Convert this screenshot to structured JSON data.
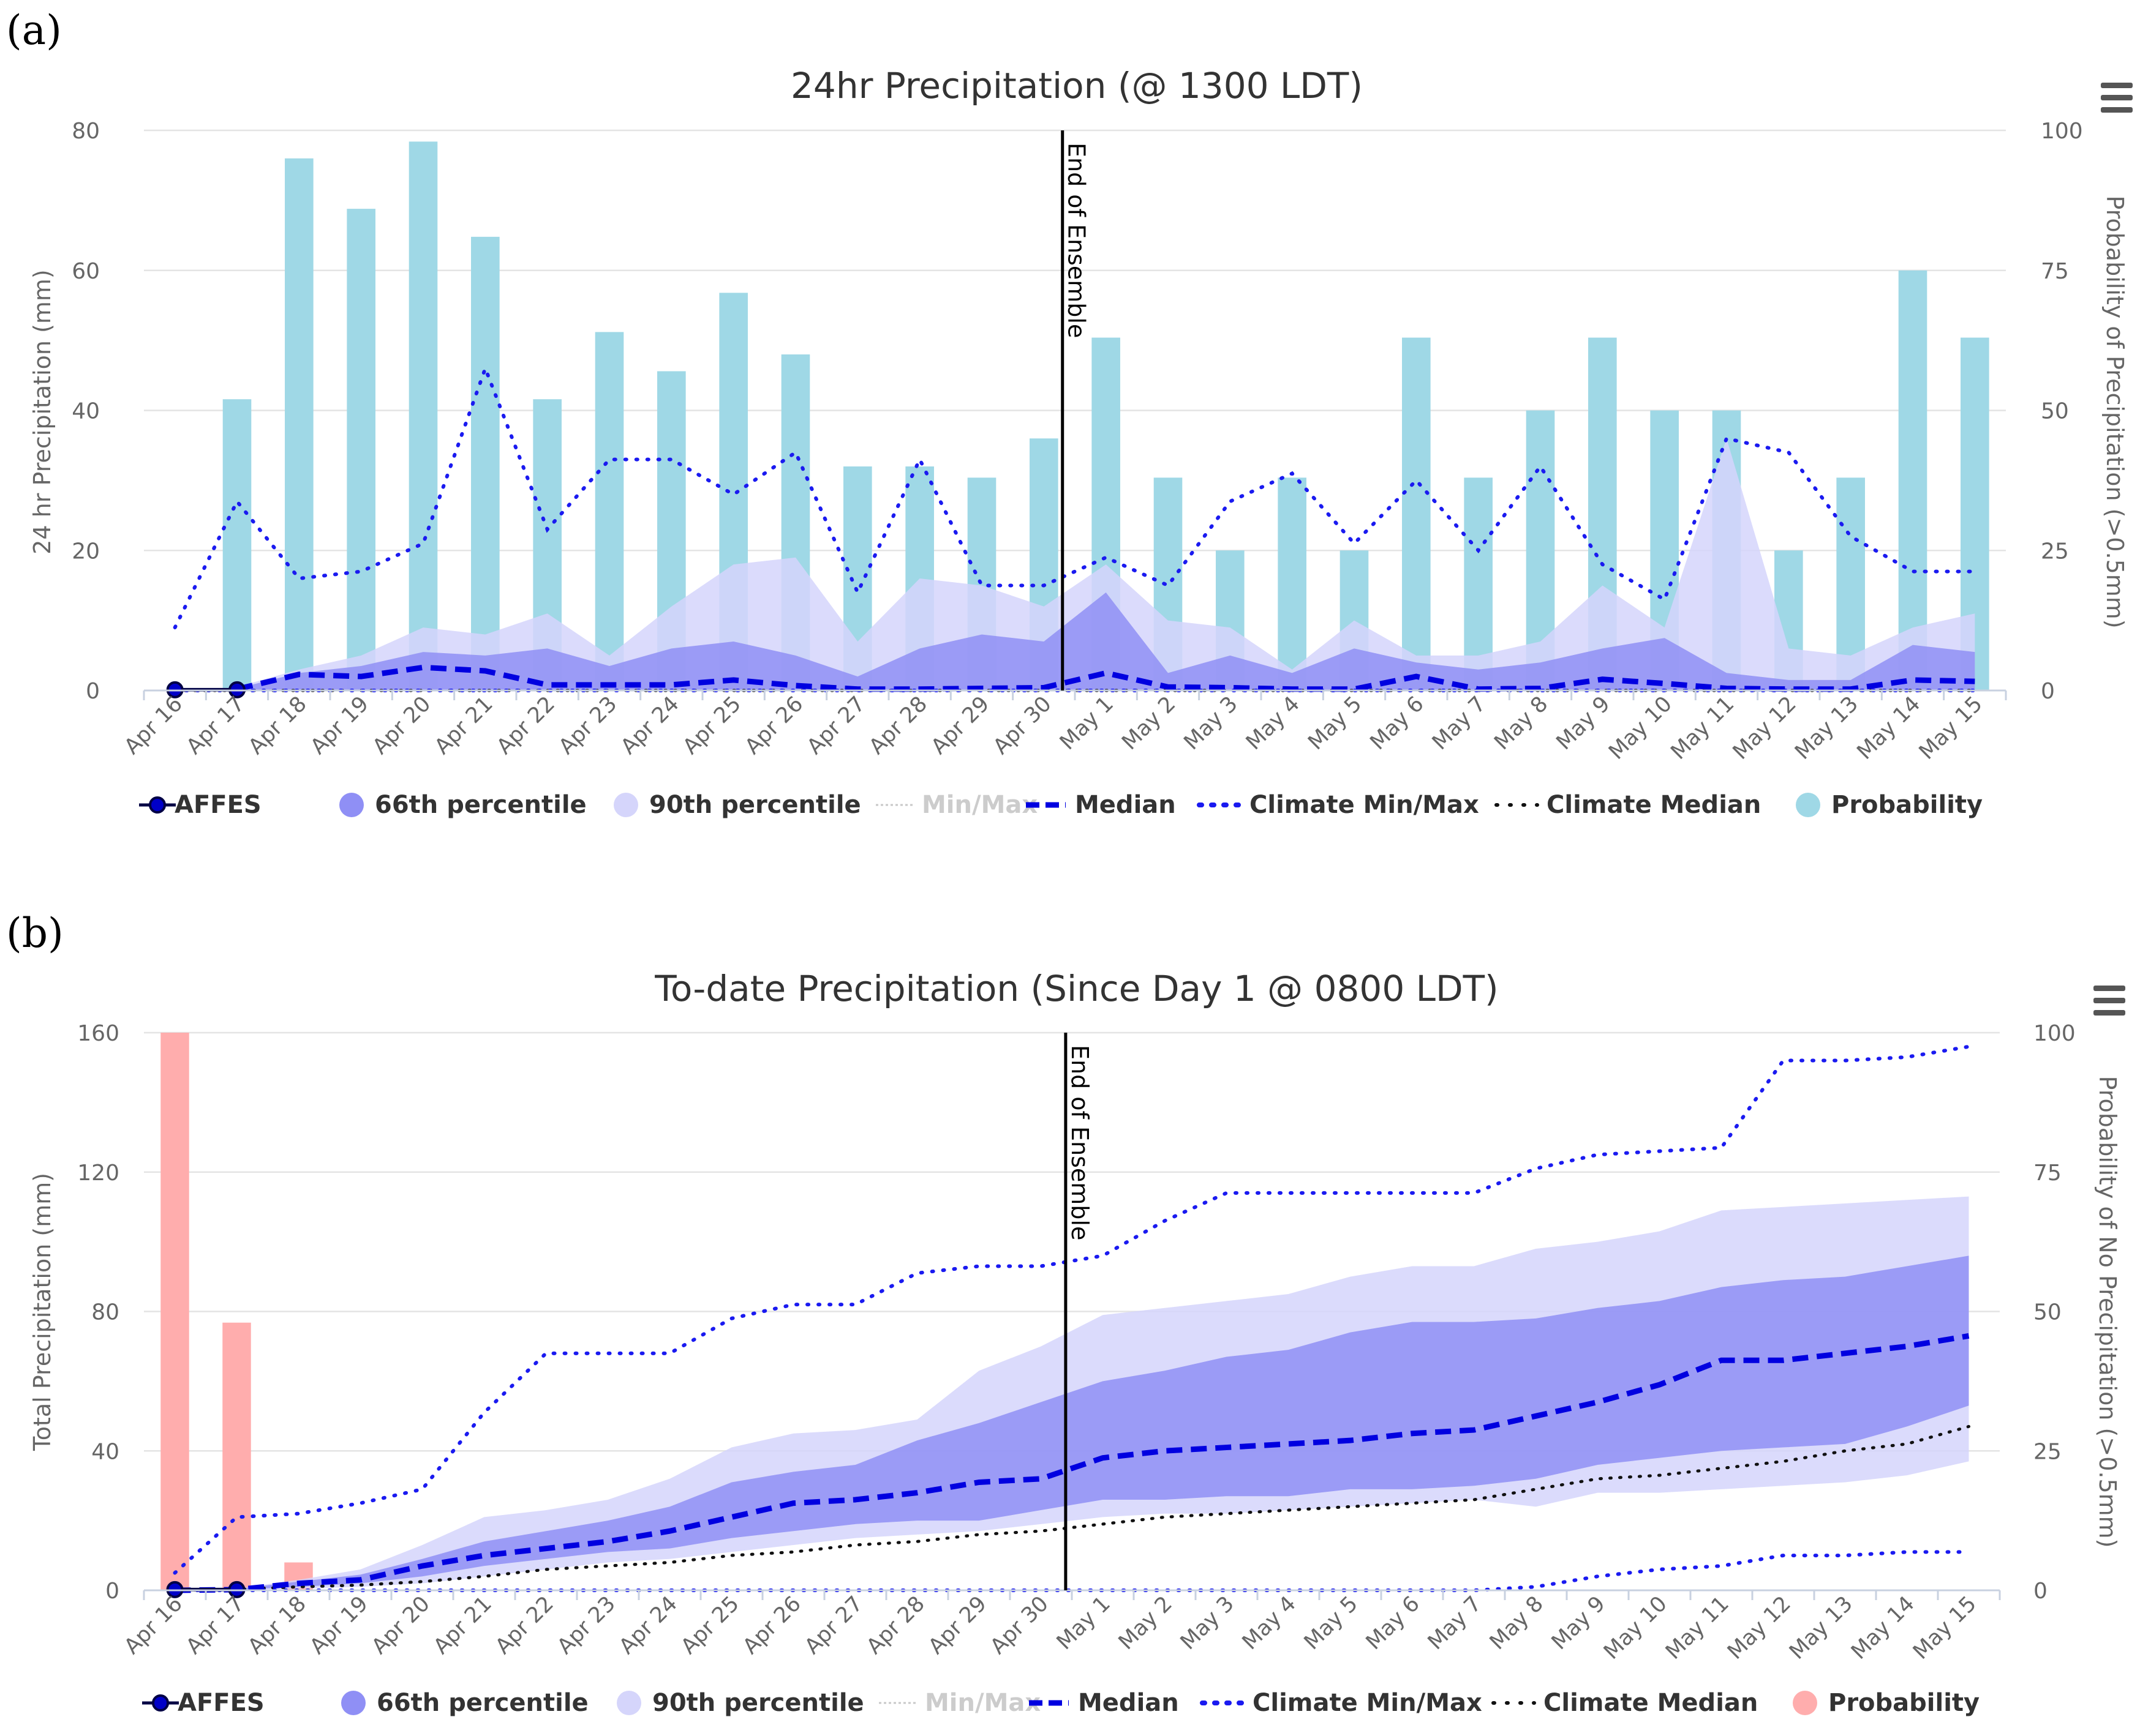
{
  "panels": {
    "a": {
      "label": "(a)",
      "menu_icon": "hamburger-menu-icon",
      "end_label": "End of Ensemble",
      "chart_data": {
        "type": "bar",
        "title": "24hr Precipitation (@ 1300 LDT)",
        "ylabel": "24 hr Precipitation (mm)",
        "y2label": "Probability of Precipitation (>0.5mm)",
        "ylim": [
          0,
          80
        ],
        "y2lim": [
          0,
          100
        ],
        "yticks": [
          0,
          20,
          40,
          60,
          80
        ],
        "y2ticks": [
          0,
          25,
          50,
          75,
          100
        ],
        "categories": [
          "Apr 16",
          "Apr 17",
          "Apr 18",
          "Apr 19",
          "Apr 20",
          "Apr 21",
          "Apr 22",
          "Apr 23",
          "Apr 24",
          "Apr 25",
          "Apr 26",
          "Apr 27",
          "Apr 28",
          "Apr 29",
          "Apr 30",
          "May 1",
          "May 2",
          "May 3",
          "May 4",
          "May 5",
          "May 6",
          "May 7",
          "May 8",
          "May 9",
          "May 10",
          "May 11",
          "May 12",
          "May 13",
          "May 14",
          "May 15"
        ],
        "end_of_ensemble_index": 14.3,
        "probability": [
          null,
          52,
          95,
          86,
          98,
          81,
          52,
          64,
          57,
          71,
          60,
          40,
          40,
          38,
          45,
          63,
          38,
          25,
          38,
          25,
          63,
          38,
          50,
          63,
          50,
          50,
          25,
          38,
          75,
          63
        ],
        "p90_upper": [
          null,
          0.5,
          3,
          5,
          9,
          8,
          11,
          5,
          12,
          18,
          19,
          7,
          16,
          15,
          12,
          18,
          10,
          9,
          3,
          10,
          5,
          5,
          7,
          15,
          9,
          36,
          6,
          5,
          9,
          11
        ],
        "p90_lower": [
          null,
          0,
          0,
          0,
          0,
          0,
          0,
          0,
          0,
          0,
          0,
          0,
          0,
          0,
          0,
          0,
          0,
          0,
          0,
          0,
          0,
          0,
          0,
          0,
          0,
          0,
          0,
          0,
          0,
          0
        ],
        "p66_upper": [
          null,
          0.3,
          2.5,
          3.5,
          5.5,
          5,
          6,
          3.5,
          6,
          7,
          5,
          2,
          6,
          8,
          7,
          14,
          2.5,
          5,
          2.5,
          6,
          4,
          3,
          4,
          6,
          7.5,
          2.5,
          1.5,
          1.5,
          6.5,
          5.5
        ],
        "p66_lower": [
          null,
          0,
          0,
          0,
          0,
          0,
          0,
          0,
          0,
          0,
          0,
          0,
          0,
          0,
          0,
          0,
          0,
          0,
          0,
          0,
          0,
          0,
          0,
          0,
          0,
          0,
          0,
          0,
          0,
          0
        ],
        "median": [
          null,
          0.2,
          2.3,
          2,
          3.3,
          2.8,
          0.8,
          0.8,
          0.8,
          1.5,
          0.7,
          0.2,
          0.2,
          0.3,
          0.4,
          2.5,
          0.5,
          0.4,
          0.2,
          0.2,
          2,
          0.2,
          0.3,
          1.6,
          1,
          0.3,
          0.2,
          0.2,
          1.5,
          1.3
        ],
        "climate_max": [
          9,
          27,
          16,
          17,
          21,
          46,
          23,
          33,
          33,
          28,
          34,
          14,
          33,
          15,
          15,
          19,
          15,
          27,
          31,
          21,
          30,
          20,
          32,
          18,
          13,
          36,
          34,
          22,
          17,
          17
        ],
        "climate_min": [
          0,
          0,
          0,
          0,
          0,
          0,
          0,
          0,
          0,
          0,
          0,
          0,
          0,
          0,
          0,
          0,
          0,
          0,
          0,
          0,
          0,
          0,
          0,
          0,
          0,
          0,
          0,
          0,
          0,
          0
        ],
        "climate_median": [
          0,
          0,
          0,
          0,
          0,
          0,
          0,
          0,
          0,
          0,
          0,
          0,
          0,
          0,
          0,
          0,
          0,
          0,
          0,
          0,
          0,
          0,
          0,
          0,
          0,
          0,
          0,
          0,
          0,
          0
        ],
        "affes_x": [
          0,
          1
        ],
        "affes": [
          0.1,
          0.1
        ],
        "legend": [
          "AFFES",
          "66th percentile",
          "90th percentile",
          "Min/Max",
          "Median",
          "Climate Min/Max",
          "Climate Median",
          "Probability"
        ],
        "colors": {
          "probability": "#9fd8e6",
          "p66": "#8f8ff5",
          "p90": "#d5d5fb",
          "median": "#0000e0",
          "climate": "#1a1af0",
          "climate_median": "#111111",
          "affes": "#0000c8",
          "affes_edge": "#000044",
          "minmax": "#c8c8c8",
          "grid": "#e4e4e4"
        }
      }
    },
    "b": {
      "label": "(b)",
      "menu_icon": "hamburger-menu-icon",
      "end_label": "End of Ensemble",
      "chart_data": {
        "type": "area",
        "title": "To-date Precipitation (Since Day 1 @ 0800 LDT)",
        "ylabel": "Total Precipitation (mm)",
        "y2label": "Probability of No Precipitation (>0.5mm)",
        "ylim": [
          0,
          160
        ],
        "y2lim": [
          0,
          100
        ],
        "yticks": [
          0,
          40,
          80,
          120,
          160
        ],
        "y2ticks": [
          0,
          25,
          50,
          75,
          100
        ],
        "categories": [
          "Apr 16",
          "Apr 17",
          "Apr 18",
          "Apr 19",
          "Apr 20",
          "Apr 21",
          "Apr 22",
          "Apr 23",
          "Apr 24",
          "Apr 25",
          "Apr 26",
          "Apr 27",
          "Apr 28",
          "Apr 29",
          "Apr 30",
          "May 1",
          "May 2",
          "May 3",
          "May 4",
          "May 5",
          "May 6",
          "May 7",
          "May 8",
          "May 9",
          "May 10",
          "May 11",
          "May 12",
          "May 13",
          "May 14",
          "May 15"
        ],
        "end_of_ensemble_index": 14.4,
        "probability": [
          100,
          48,
          5,
          null,
          null,
          null,
          null,
          null,
          null,
          null,
          null,
          null,
          null,
          null,
          null,
          null,
          null,
          null,
          null,
          null,
          null,
          null,
          null,
          null,
          null,
          null,
          null,
          null,
          null,
          null
        ],
        "p90_upper": [
          0,
          0.5,
          3,
          6,
          13,
          21,
          23,
          26,
          32,
          41,
          45,
          46,
          49,
          63,
          70,
          79,
          81,
          83,
          85,
          90,
          93,
          93,
          98,
          100,
          103,
          109,
          110,
          111,
          112,
          113
        ],
        "p90_lower": [
          0,
          0.1,
          0.5,
          1,
          2,
          4,
          6,
          8,
          9,
          11,
          13,
          15,
          16,
          17,
          19,
          21,
          22,
          22,
          23,
          24,
          25,
          26,
          24,
          28,
          28,
          29,
          30,
          31,
          33,
          37
        ],
        "p66_upper": [
          0,
          0.4,
          2.5,
          4.5,
          9,
          14,
          17,
          20,
          24,
          31,
          34,
          36,
          43,
          48,
          54,
          60,
          63,
          67,
          69,
          74,
          77,
          77,
          78,
          81,
          83,
          87,
          89,
          90,
          93,
          96
        ],
        "p66_lower": [
          0,
          0.1,
          1,
          2,
          4,
          7,
          9,
          11,
          12,
          15,
          17,
          19,
          20,
          20,
          23,
          26,
          26,
          27,
          27,
          29,
          29,
          30,
          32,
          36,
          38,
          40,
          41,
          42,
          47,
          53
        ],
        "median": [
          0,
          0.2,
          2,
          3,
          7,
          10,
          12,
          14,
          17,
          21,
          25,
          26,
          28,
          31,
          32,
          38,
          40,
          41,
          42,
          43,
          45,
          46,
          50,
          54,
          59,
          66,
          66,
          68,
          70,
          73
        ],
        "climate_max": [
          5,
          21,
          22,
          25,
          29,
          51,
          68,
          68,
          68,
          78,
          82,
          82,
          91,
          93,
          93,
          96,
          106,
          114,
          114,
          114,
          114,
          114,
          121,
          125,
          126,
          127,
          152,
          152,
          153,
          156
        ],
        "climate_min": [
          0,
          0,
          0,
          0,
          0,
          0,
          0,
          0,
          0,
          0,
          0,
          0,
          0,
          0,
          0,
          0,
          0,
          0,
          0,
          0,
          0,
          0,
          1,
          4,
          6,
          7,
          10,
          10,
          11,
          11
        ],
        "climate_median": [
          0,
          0.3,
          1,
          1.5,
          2.5,
          4,
          6,
          7,
          8,
          10,
          11,
          13,
          14,
          16,
          17,
          19,
          21,
          22,
          23,
          24,
          25,
          26,
          29,
          32,
          33,
          35,
          37,
          40,
          42,
          47
        ],
        "affes_x": [
          0,
          1
        ],
        "affes": [
          0.2,
          0.2
        ],
        "legend": [
          "AFFES",
          "66th percentile",
          "90th percentile",
          "Min/Max",
          "Median",
          "Climate Min/Max",
          "Climate Median",
          "Probability"
        ],
        "colors": {
          "probability": "#ffadad",
          "p66": "#8f8ff5",
          "p90": "#d5d5fb",
          "median": "#0000e0",
          "climate": "#1a1af0",
          "climate_median": "#111111",
          "affes": "#0000c8",
          "affes_edge": "#000044",
          "minmax": "#c8c8c8",
          "grid": "#e4e4e4"
        }
      }
    }
  }
}
